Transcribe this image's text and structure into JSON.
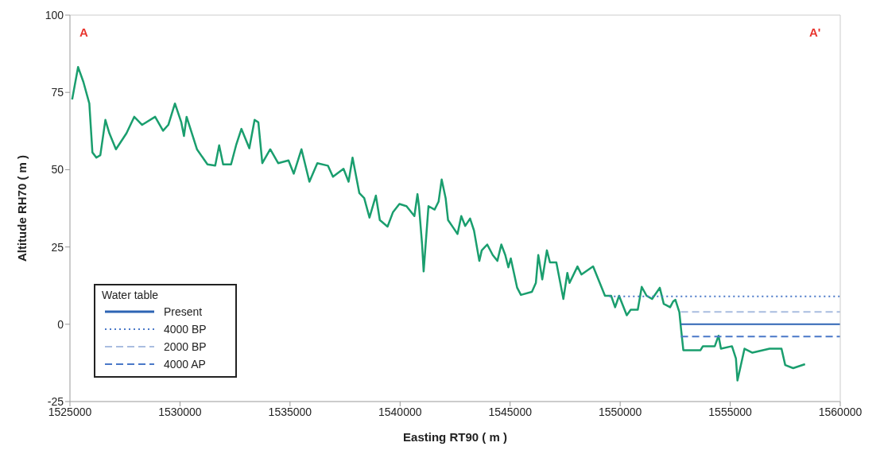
{
  "chart_data": {
    "type": "line",
    "xlabel": "Easting RT90 ( m )",
    "ylabel": "Altitude RH70 ( m )",
    "legend_title": "Water table",
    "legend": "bottom left",
    "grid": false,
    "marker": "none",
    "xlim": [
      1525000,
      1560000
    ],
    "xticks": [
      1525000,
      1530000,
      1535000,
      1540000,
      1545000,
      1550000,
      1555000,
      1560000
    ],
    "ylim": [
      -25,
      100
    ],
    "yticks": [
      -25,
      0,
      25,
      50,
      75,
      100
    ],
    "annotations": [
      "A",
      "A'"
    ],
    "series": [
      {
        "color": "#1a9e6e",
        "line_style": "solid",
        "x": [
          1525100,
          1525370,
          1525610,
          1525880,
          1526020,
          1526200,
          1526380,
          1526610,
          1526790,
          1527090,
          1527570,
          1527920,
          1528280,
          1528870,
          1529230,
          1529470,
          1529770,
          1530060,
          1530180,
          1530300,
          1530770,
          1531250,
          1531600,
          1531780,
          1531960,
          1532320,
          1532560,
          1532790,
          1533150,
          1533390,
          1533560,
          1533740,
          1534100,
          1534460,
          1534930,
          1535170,
          1535520,
          1535880,
          1536240,
          1536720,
          1536950,
          1537430,
          1537660,
          1537840,
          1538150,
          1538370,
          1538610,
          1538900,
          1539080,
          1539430,
          1539680,
          1539970,
          1540290,
          1540650,
          1540790,
          1540860,
          1541000,
          1541070,
          1541180,
          1541290,
          1541570,
          1541750,
          1541890,
          1542070,
          1542180,
          1542430,
          1542610,
          1542780,
          1542960,
          1543180,
          1543360,
          1543600,
          1543710,
          1543960,
          1544210,
          1544420,
          1544600,
          1544780,
          1544920,
          1545030,
          1545320,
          1545490,
          1545990,
          1546170,
          1546280,
          1546460,
          1546670,
          1546810,
          1547100,
          1547420,
          1547600,
          1547700,
          1548060,
          1548240,
          1548770,
          1549310,
          1549590,
          1549770,
          1549950,
          1550300,
          1550480,
          1550800,
          1550980,
          1551200,
          1551450,
          1551800,
          1551980,
          1552270,
          1552410,
          1552510,
          1552690,
          1552760,
          1552870,
          1553650,
          1553760,
          1554300,
          1554470,
          1554580,
          1555080,
          1555260,
          1555330,
          1555470,
          1555650,
          1556010,
          1556790,
          1557330,
          1557500,
          1557860,
          1558400
        ],
        "values": [
          72.7,
          83.2,
          78.4,
          71.4,
          55.6,
          53.9,
          54.7,
          66.1,
          61.8,
          56.6,
          61.8,
          67.1,
          64.5,
          67.1,
          62.6,
          64.5,
          71.4,
          65.3,
          60.9,
          67.1,
          56.6,
          51.7,
          51.3,
          57.9,
          51.7,
          51.7,
          58.2,
          63.2,
          56.9,
          66.1,
          65.3,
          52.1,
          56.6,
          52.1,
          53.0,
          48.7,
          56.6,
          46.1,
          52.1,
          51.3,
          47.7,
          50.3,
          46.1,
          53.9,
          42.4,
          40.8,
          34.5,
          41.6,
          33.7,
          31.6,
          36.3,
          38.9,
          38.2,
          35.0,
          42.1,
          38.2,
          25.8,
          17.1,
          27.6,
          38.2,
          37.1,
          39.7,
          46.8,
          40.8,
          33.7,
          31.1,
          29.2,
          35.0,
          31.8,
          34.2,
          30.3,
          20.5,
          23.9,
          25.8,
          22.4,
          20.5,
          25.8,
          22.4,
          18.4,
          21.3,
          11.8,
          9.5,
          10.5,
          13.4,
          22.4,
          14.5,
          23.9,
          20.0,
          20.0,
          8.2,
          16.6,
          13.4,
          18.7,
          16.1,
          18.7,
          9.2,
          9.2,
          5.5,
          9.2,
          2.9,
          4.7,
          4.7,
          12.1,
          9.2,
          8.2,
          11.8,
          6.6,
          5.5,
          7.4,
          7.9,
          3.9,
          -1.1,
          -8.4,
          -8.4,
          -7.1,
          -7.1,
          -3.7,
          -7.9,
          -7.1,
          -11.1,
          -18.2,
          -13.7,
          -7.9,
          -9.2,
          -7.9,
          -7.9,
          -13.2,
          -14.2,
          -12.9
        ]
      },
      {
        "name": "Present",
        "color": "#2e64b4",
        "line_style": "solid",
        "x": [
          1552760,
          1560000
        ],
        "values": [
          0,
          0
        ]
      },
      {
        "name": "4000 BP",
        "color": "#4a78c8",
        "line_style": "dotted",
        "x": [
          1549500,
          1560000
        ],
        "values": [
          9,
          9
        ]
      },
      {
        "name": "2000 BP",
        "color": "#a9bde0",
        "line_style": "dashed",
        "x": [
          1552760,
          1560000
        ],
        "values": [
          4,
          4
        ]
      },
      {
        "name": "4000 AP",
        "color": "#4a78c8",
        "line_style": "dashed",
        "x": [
          1552760,
          1560000
        ],
        "values": [
          -4,
          -4
        ]
      }
    ]
  }
}
